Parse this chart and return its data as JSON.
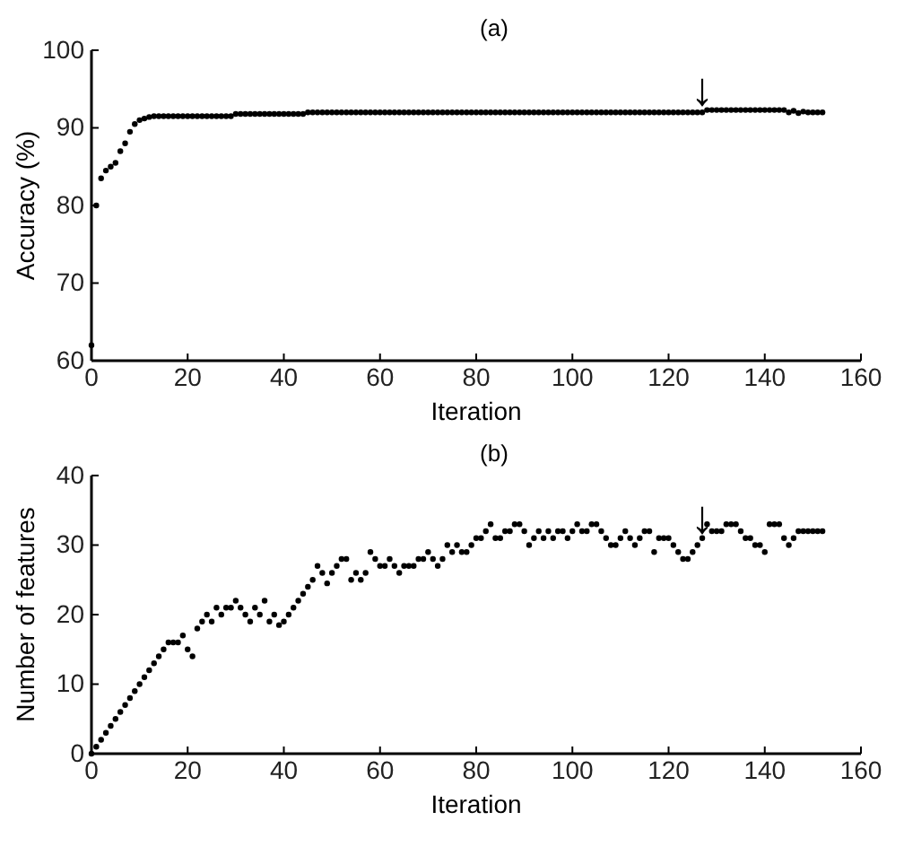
{
  "chart_data": [
    {
      "type": "scatter",
      "title": "(a)",
      "xlabel": "Iteration",
      "ylabel": "Accuracy (%)",
      "marker": "circle",
      "grid": false,
      "xlim": [
        0,
        160
      ],
      "xticks": [
        0,
        20,
        40,
        60,
        80,
        100,
        120,
        140,
        160
      ],
      "ylim": [
        60,
        100
      ],
      "yticks": [
        60,
        70,
        80,
        90,
        100
      ],
      "annotations": [
        {
          "text": "↓",
          "x": 127,
          "y": 92.3
        }
      ],
      "x": [
        0,
        1,
        2,
        3,
        4,
        5,
        6,
        7,
        8,
        9,
        10,
        11,
        12,
        13,
        14,
        15,
        16,
        17,
        18,
        19,
        20,
        21,
        22,
        23,
        24,
        25,
        26,
        27,
        28,
        29,
        30,
        31,
        32,
        33,
        34,
        35,
        36,
        37,
        38,
        39,
        40,
        41,
        42,
        43,
        44,
        45,
        46,
        47,
        48,
        49,
        50,
        51,
        52,
        53,
        54,
        55,
        56,
        57,
        58,
        59,
        60,
        61,
        62,
        63,
        64,
        65,
        66,
        67,
        68,
        69,
        70,
        71,
        72,
        73,
        74,
        75,
        76,
        77,
        78,
        79,
        80,
        81,
        82,
        83,
        84,
        85,
        86,
        87,
        88,
        89,
        90,
        91,
        92,
        93,
        94,
        95,
        96,
        97,
        98,
        99,
        100,
        101,
        102,
        103,
        104,
        105,
        106,
        107,
        108,
        109,
        110,
        111,
        112,
        113,
        114,
        115,
        116,
        117,
        118,
        119,
        120,
        121,
        122,
        123,
        124,
        125,
        126,
        127,
        128,
        129,
        130,
        131,
        132,
        133,
        134,
        135,
        136,
        137,
        138,
        139,
        140,
        141,
        142,
        143,
        144,
        145,
        146,
        147,
        148,
        149,
        150,
        151,
        152
      ],
      "series": [
        {
          "color": "#000000",
          "values": [
            62,
            80,
            83.5,
            84.5,
            85,
            85.5,
            87,
            88,
            89.5,
            90.5,
            91,
            91.2,
            91.4,
            91.5,
            91.5,
            91.5,
            91.5,
            91.5,
            91.5,
            91.5,
            91.5,
            91.5,
            91.5,
            91.5,
            91.5,
            91.5,
            91.5,
            91.5,
            91.5,
            91.5,
            91.8,
            91.8,
            91.8,
            91.8,
            91.8,
            91.8,
            91.8,
            91.8,
            91.8,
            91.8,
            91.8,
            91.8,
            91.8,
            91.8,
            91.8,
            92,
            92,
            92,
            92,
            92,
            92,
            92,
            92,
            92,
            92,
            92,
            92,
            92,
            92,
            92,
            92,
            92,
            92,
            92,
            92,
            92,
            92,
            92,
            92,
            92,
            92,
            92,
            92,
            92,
            92,
            92,
            92,
            92,
            92,
            92,
            92,
            92,
            92,
            92,
            92,
            92,
            92,
            92,
            92,
            92,
            92,
            92,
            92,
            92,
            92,
            92,
            92,
            92,
            92,
            92,
            92,
            92,
            92,
            92,
            92,
            92,
            92,
            92,
            92,
            92,
            92,
            92,
            92,
            92,
            92,
            92,
            92,
            92,
            92,
            92,
            92,
            92,
            92,
            92,
            92,
            92,
            92,
            92,
            92.3,
            92.3,
            92.3,
            92.3,
            92.3,
            92.3,
            92.3,
            92.3,
            92.3,
            92.3,
            92.3,
            92.3,
            92.3,
            92.3,
            92.3,
            92.3,
            92.3,
            92,
            92.2,
            91.9,
            92.1,
            92,
            92,
            92,
            92
          ]
        }
      ]
    },
    {
      "type": "scatter",
      "title": "(b)",
      "xlabel": "Iteration",
      "ylabel": "Number of features",
      "marker": "circle",
      "grid": false,
      "xlim": [
        0,
        160
      ],
      "xticks": [
        0,
        20,
        40,
        60,
        80,
        100,
        120,
        140,
        160
      ],
      "ylim": [
        0,
        40
      ],
      "yticks": [
        0,
        10,
        20,
        30,
        40
      ],
      "annotations": [
        {
          "text": "↓",
          "x": 127,
          "y": 31
        }
      ],
      "x": [
        0,
        1,
        2,
        3,
        4,
        5,
        6,
        7,
        8,
        9,
        10,
        11,
        12,
        13,
        14,
        15,
        16,
        17,
        18,
        19,
        20,
        21,
        22,
        23,
        24,
        25,
        26,
        27,
        28,
        29,
        30,
        31,
        32,
        33,
        34,
        35,
        36,
        37,
        38,
        39,
        40,
        41,
        42,
        43,
        44,
        45,
        46,
        47,
        48,
        49,
        50,
        51,
        52,
        53,
        54,
        55,
        56,
        57,
        58,
        59,
        60,
        61,
        62,
        63,
        64,
        65,
        66,
        67,
        68,
        69,
        70,
        71,
        72,
        73,
        74,
        75,
        76,
        77,
        78,
        79,
        80,
        81,
        82,
        83,
        84,
        85,
        86,
        87,
        88,
        89,
        90,
        91,
        92,
        93,
        94,
        95,
        96,
        97,
        98,
        99,
        100,
        101,
        102,
        103,
        104,
        105,
        106,
        107,
        108,
        109,
        110,
        111,
        112,
        113,
        114,
        115,
        116,
        117,
        118,
        119,
        120,
        121,
        122,
        123,
        124,
        125,
        126,
        127,
        128,
        129,
        130,
        131,
        132,
        133,
        134,
        135,
        136,
        137,
        138,
        139,
        140,
        141,
        142,
        143,
        144,
        145,
        146,
        147,
        148,
        149,
        150,
        151,
        152
      ],
      "series": [
        {
          "color": "#000000",
          "values": [
            0,
            1,
            2,
            3,
            4,
            5,
            6,
            7,
            8,
            9,
            10,
            11,
            12,
            13,
            14,
            15,
            16,
            16,
            16,
            17,
            15,
            14,
            18,
            19,
            20,
            19,
            21,
            20,
            21,
            21,
            22,
            21,
            20,
            19,
            21,
            20,
            22,
            19,
            20,
            18.5,
            19,
            20,
            21,
            22,
            23,
            24,
            25,
            27,
            26,
            24.5,
            26,
            27,
            28,
            28,
            25,
            26,
            25,
            26,
            29,
            28,
            27,
            27,
            28,
            27,
            26,
            27,
            27,
            27,
            28,
            28,
            29,
            28,
            27,
            28,
            30,
            29,
            30,
            29,
            29,
            30,
            31,
            31,
            32,
            33,
            31,
            31,
            32,
            32,
            33,
            33,
            32,
            30,
            31,
            32,
            31,
            32,
            31,
            32,
            32,
            31,
            32,
            33,
            32,
            32,
            33,
            33,
            32,
            31,
            30,
            30,
            31,
            32,
            31,
            30,
            31,
            32,
            32,
            29,
            31,
            31,
            31,
            30,
            29,
            28,
            28,
            29,
            30,
            31,
            33,
            32,
            32,
            32,
            33,
            33,
            33,
            32,
            31,
            31,
            30,
            30,
            29,
            33,
            33,
            33,
            31,
            30,
            31,
            32,
            32,
            32,
            32,
            32,
            32
          ]
        }
      ]
    }
  ]
}
